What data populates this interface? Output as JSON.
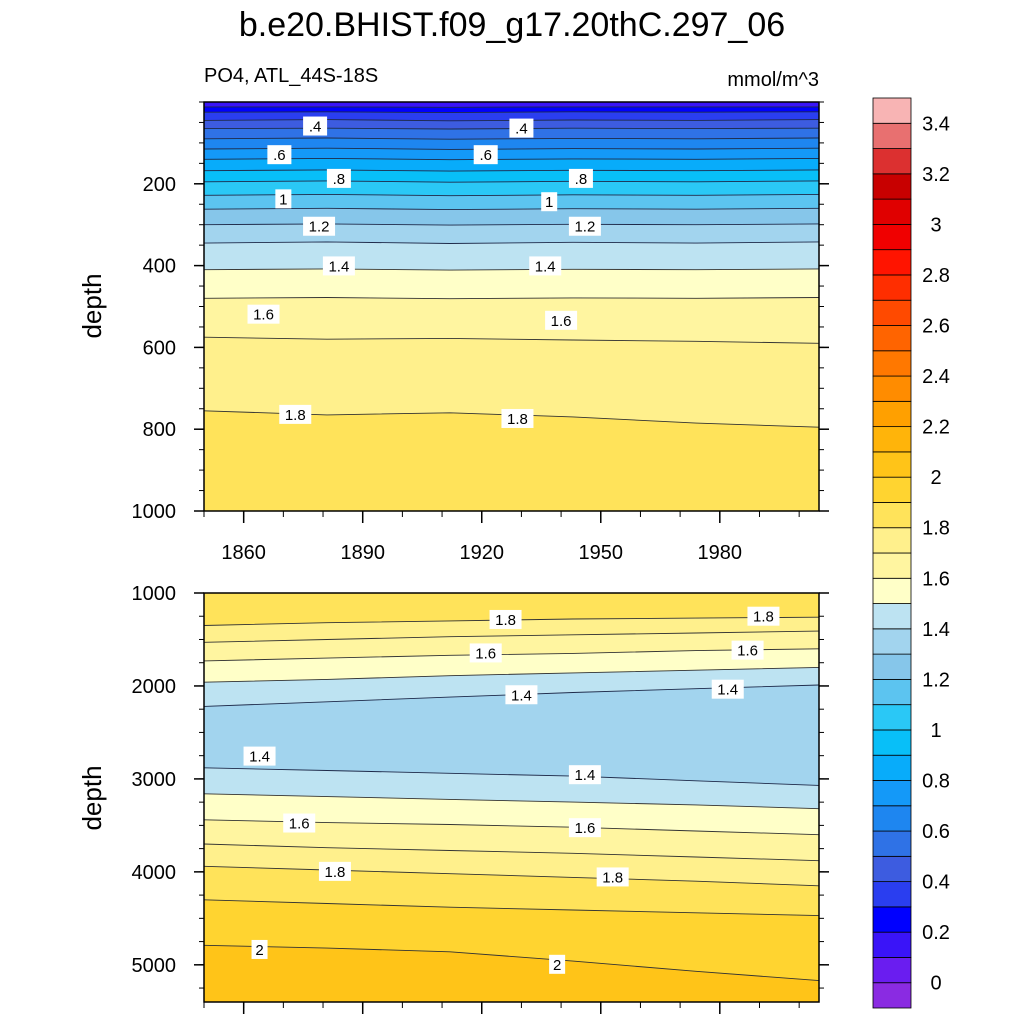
{
  "chart_data": {
    "type": "contour",
    "title": "b.e20.BHIST.f09_g17.20thC.297_06",
    "variable_label": "PO4, ATL_44S-18S",
    "units_label": "mmol/m^3",
    "x_range": [
      1850,
      2005
    ],
    "x_ticks": [
      "1860",
      "1890",
      "1920",
      "1950",
      "1980"
    ],
    "colorbar": {
      "ticks": [
        "0",
        "0.2",
        "0.4",
        "0.6",
        "0.8",
        "1",
        "1.2",
        "1.4",
        "1.6",
        "1.8",
        "2",
        "2.2",
        "2.4",
        "2.6",
        "2.8",
        "3",
        "3.2",
        "3.4"
      ],
      "levels": [
        -0.1,
        0,
        0.1,
        0.2,
        0.3,
        0.4,
        0.5,
        0.6,
        0.7,
        0.8,
        0.9,
        1.0,
        1.1,
        1.2,
        1.3,
        1.4,
        1.5,
        1.6,
        1.7,
        1.8,
        1.9,
        2.0,
        2.1,
        2.2,
        2.3,
        2.4,
        2.5,
        2.6,
        2.7,
        2.8,
        2.9,
        3.0,
        3.1,
        3.2,
        3.3,
        3.4,
        3.5,
        3.6
      ],
      "colors": [
        "#8a2be2",
        "#6a1df0",
        "#3a14f8",
        "#0000ff",
        "#2a3ef0",
        "#3d5ce0",
        "#2f72e6",
        "#1e86f0",
        "#1499f8",
        "#08acfa",
        "#08bff8",
        "#2ac8f6",
        "#5cc4f0",
        "#86c6ea",
        "#a2d4ee",
        "#bde3f2",
        "#ffffc8",
        "#fff5a0",
        "#fff08c",
        "#ffe35a",
        "#ffd430",
        "#ffc418",
        "#ffb40a",
        "#ffa000",
        "#ff8c00",
        "#ff7800",
        "#ff6400",
        "#ff4a00",
        "#ff2e00",
        "#ff1400",
        "#f00000",
        "#e00000",
        "#c80000",
        "#dc3030",
        "#e87070",
        "#f8b4b4"
      ]
    },
    "panels": [
      {
        "name": "upper",
        "ylabel": "depth",
        "ylim": [
          1000,
          0
        ],
        "y_ticks": [
          "200",
          "400",
          "600",
          "800",
          "1000"
        ],
        "contours": [
          {
            "value": 0.2,
            "depths": [
              12,
              12,
              13,
              12,
              12,
              12
            ]
          },
          {
            "value": 0.3,
            "depths": [
              25,
              24,
              26,
              24,
              25,
              24
            ]
          },
          {
            "value": 0.4,
            "depths": [
              45,
              43,
              46,
              44,
              45,
              43
            ]
          },
          {
            "value": 0.5,
            "depths": [
              65,
              64,
              66,
              64,
              65,
              64
            ]
          },
          {
            "value": 0.6,
            "depths": [
              90,
              88,
              91,
              89,
              90,
              88
            ]
          },
          {
            "value": 0.7,
            "depths": [
              115,
              113,
              116,
              114,
              115,
              113
            ]
          },
          {
            "value": 0.8,
            "depths": [
              140,
              138,
              141,
              139,
              140,
              138
            ]
          },
          {
            "value": 0.9,
            "depths": [
              168,
              166,
              169,
              167,
              168,
              166
            ]
          },
          {
            "value": 1.0,
            "depths": [
              195,
              193,
              196,
              194,
              195,
              193
            ]
          },
          {
            "value": 1.1,
            "depths": [
              228,
              226,
              229,
              227,
              228,
              226
            ]
          },
          {
            "value": 1.2,
            "depths": [
              262,
              260,
              263,
              261,
              262,
              260
            ]
          },
          {
            "value": 1.3,
            "depths": [
              300,
              298,
              301,
              299,
              300,
              298
            ]
          },
          {
            "value": 1.4,
            "depths": [
              345,
              342,
              346,
              343,
              345,
              342
            ]
          },
          {
            "value": 1.5,
            "depths": [
              410,
              408,
              411,
              409,
              410,
              408
            ]
          },
          {
            "value": 1.6,
            "depths": [
              480,
              478,
              481,
              479,
              480,
              478
            ]
          },
          {
            "value": 1.7,
            "depths": [
              575,
              580,
              578,
              582,
              585,
              590
            ]
          },
          {
            "value": 1.8,
            "depths": [
              755,
              765,
              760,
              770,
              785,
              795
            ]
          }
        ],
        "contour_labels": [
          {
            "text": ".4",
            "x": 1878,
            "depth": 60
          },
          {
            "text": ".4",
            "x": 1930,
            "depth": 65
          },
          {
            "text": ".6",
            "x": 1869,
            "depth": 130
          },
          {
            "text": ".6",
            "x": 1921,
            "depth": 130
          },
          {
            "text": ".8",
            "x": 1884,
            "depth": 188
          },
          {
            "text": ".8",
            "x": 1945,
            "depth": 188
          },
          {
            "text": "1",
            "x": 1870,
            "depth": 238
          },
          {
            "text": "1",
            "x": 1937,
            "depth": 245
          },
          {
            "text": "1.2",
            "x": 1879,
            "depth": 305
          },
          {
            "text": "1.2",
            "x": 1946,
            "depth": 305
          },
          {
            "text": "1.4",
            "x": 1884,
            "depth": 402
          },
          {
            "text": "1.4",
            "x": 1936,
            "depth": 402
          },
          {
            "text": "1.6",
            "x": 1865,
            "depth": 520
          },
          {
            "text": "1.6",
            "x": 1940,
            "depth": 535
          },
          {
            "text": "1.8",
            "x": 1873,
            "depth": 765
          },
          {
            "text": "1.8",
            "x": 1929,
            "depth": 775
          }
        ]
      },
      {
        "name": "lower",
        "ylabel": "depth",
        "ylim": [
          5400,
          1000
        ],
        "y_ticks": [
          "1000",
          "2000",
          "3000",
          "4000",
          "5000"
        ],
        "contours": [
          {
            "value": 1.8,
            "depths": [
              1350,
              1320,
              1300,
              1280,
              1270,
              1260
            ]
          },
          {
            "value": 1.7,
            "depths": [
              1530,
              1500,
              1470,
              1450,
              1430,
              1410
            ]
          },
          {
            "value": 1.6,
            "depths": [
              1730,
              1700,
              1670,
              1650,
              1620,
              1600
            ]
          },
          {
            "value": 1.5,
            "depths": [
              1960,
              1930,
              1890,
              1860,
              1830,
              1800
            ]
          },
          {
            "value": 1.4,
            "depths": [
              2220,
              2170,
              2120,
              2070,
              2030,
              1990
            ]
          },
          {
            "value": 1.4,
            "depths": [
              2880,
              2910,
              2940,
              2970,
              3020,
              3070
            ]
          },
          {
            "value": 1.5,
            "depths": [
              3160,
              3190,
              3220,
              3250,
              3280,
              3320
            ]
          },
          {
            "value": 1.6,
            "depths": [
              3440,
              3470,
              3490,
              3520,
              3560,
              3600
            ]
          },
          {
            "value": 1.7,
            "depths": [
              3700,
              3740,
              3770,
              3800,
              3840,
              3880
            ]
          },
          {
            "value": 1.8,
            "depths": [
              3940,
              3980,
              4020,
              4060,
              4100,
              4150
            ]
          },
          {
            "value": 1.9,
            "depths": [
              4300,
              4340,
              4380,
              4410,
              4440,
              4470
            ]
          },
          {
            "value": 2.0,
            "depths": [
              4790,
              4820,
              4860,
              4960,
              5070,
              5170
            ]
          }
        ],
        "contour_labels": [
          {
            "text": "1.8",
            "x": 1926,
            "depth": 1290
          },
          {
            "text": "1.8",
            "x": 1991,
            "depth": 1255
          },
          {
            "text": "1.6",
            "x": 1921,
            "depth": 1650
          },
          {
            "text": "1.6",
            "x": 1987,
            "depth": 1620
          },
          {
            "text": "1.4",
            "x": 1930,
            "depth": 2100
          },
          {
            "text": "1.4",
            "x": 1982,
            "depth": 2040
          },
          {
            "text": "1.4",
            "x": 1864,
            "depth": 2760
          },
          {
            "text": "1.4",
            "x": 1946,
            "depth": 2960
          },
          {
            "text": "1.6",
            "x": 1874,
            "depth": 3480
          },
          {
            "text": "1.6",
            "x": 1946,
            "depth": 3530
          },
          {
            "text": "1.8",
            "x": 1883,
            "depth": 4000
          },
          {
            "text": "1.8",
            "x": 1953,
            "depth": 4060
          },
          {
            "text": "2",
            "x": 1864,
            "depth": 4840
          },
          {
            "text": "2",
            "x": 1939,
            "depth": 5000
          }
        ]
      }
    ]
  }
}
